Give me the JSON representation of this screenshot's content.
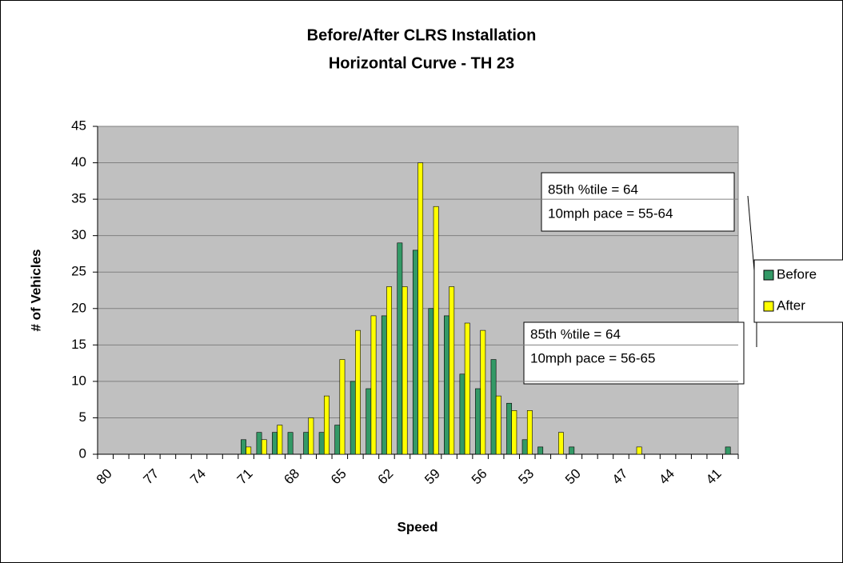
{
  "chart_data": {
    "type": "bar",
    "title": [
      "Before/After CLRS Installation",
      "Horizontal Curve - TH 23"
    ],
    "x_label": "Speed",
    "y_label": "# of Vehicles",
    "categories": [
      "80",
      null,
      null,
      "77",
      null,
      null,
      "74",
      null,
      null,
      "71",
      null,
      null,
      "68",
      null,
      null,
      "65",
      null,
      null,
      "62",
      null,
      null,
      "59",
      null,
      null,
      "56",
      null,
      null,
      "53",
      null,
      null,
      "50",
      null,
      null,
      "47",
      null,
      null,
      "44",
      null,
      null,
      "41",
      null
    ],
    "series": [
      {
        "name": "Before",
        "color": "#339966",
        "values": [
          0,
          0,
          0,
          0,
          0,
          0,
          0,
          0,
          0,
          2,
          3,
          3,
          3,
          3,
          3,
          4,
          10,
          9,
          19,
          29,
          28,
          20,
          19,
          11,
          9,
          13,
          7,
          2,
          1,
          0,
          1,
          0,
          0,
          0,
          0,
          0,
          0,
          0,
          0,
          0,
          1
        ]
      },
      {
        "name": "After",
        "color": "#ffff00",
        "values": [
          0,
          0,
          0,
          0,
          0,
          0,
          0,
          0,
          0,
          1,
          2,
          4,
          0,
          5,
          8,
          13,
          17,
          19,
          23,
          23,
          40,
          34,
          23,
          18,
          17,
          8,
          6,
          6,
          0,
          3,
          0,
          0,
          0,
          0,
          1,
          0,
          0,
          0,
          0,
          0,
          0
        ]
      }
    ],
    "ylim": [
      0,
      45
    ],
    "yticks": [
      0,
      5,
      10,
      15,
      20,
      25,
      30,
      35,
      40,
      45
    ],
    "grid": true,
    "annotations": [
      [
        "85th %tile = 64",
        "10mph pace = 55-64"
      ],
      [
        "85th %tile = 64",
        "10mph pace = 56-65"
      ]
    ],
    "legend": "right"
  }
}
